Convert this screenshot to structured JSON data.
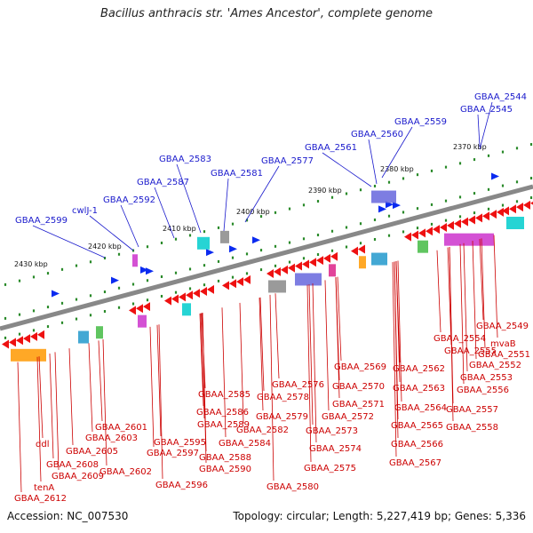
{
  "title": "Bacillus anthracis str. 'Ames Ancestor', complete genome",
  "footer": {
    "accession": "Accession: NC_007530",
    "topology": "Topology: circular; Length: 5,227,419 bp; Genes: 5,336"
  },
  "colors": {
    "backbone": "#888888",
    "forward_gene": "#0b2bf0",
    "reverse_gene": "#ee1111",
    "label_upper": "#1a1acc",
    "label_lower": "#cc0000",
    "tick_green": "#2a8a2a"
  },
  "kbp_labels": [
    "2370 kbp",
    "2380 kbp",
    "2390 kbp",
    "2400 kbp",
    "2410 kbp",
    "2420 kbp",
    "2430 kbp"
  ],
  "upper_labels": [
    "GBAA_2544",
    "GBAA_2545",
    "GBAA_2559",
    "GBAA_2560",
    "GBAA_2561",
    "GBAA_2577",
    "GBAA_2581",
    "GBAA_2583",
    "GBAA_2587",
    "GBAA_2592",
    "cwlJ-1",
    "GBAA_2599"
  ],
  "lower_labels": [
    "GBAA_2549",
    "mvaB",
    "GBAA_2551",
    "GBAA_2552",
    "GBAA_2553",
    "GBAA_2554",
    "GBAA_2555",
    "GBAA_2556",
    "GBAA_2557",
    "GBAA_2558",
    "GBAA_2562",
    "GBAA_2563",
    "GBAA_2564",
    "GBAA_2565",
    "GBAA_2566",
    "GBAA_2567",
    "GBAA_2569",
    "GBAA_2570",
    "GBAA_2571",
    "GBAA_2572",
    "GBAA_2573",
    "GBAA_2574",
    "GBAA_2575",
    "GBAA_2576",
    "GBAA_2578",
    "GBAA_2579",
    "GBAA_2580",
    "GBAA_2582",
    "GBAA_2584",
    "GBAA_2585",
    "GBAA_2586",
    "GBAA_2588",
    "GBAA_2589",
    "GBAA_2590",
    "GBAA_2595",
    "GBAA_2596",
    "GBAA_2597",
    "GBAA_2601",
    "GBAA_2602",
    "GBAA_2603",
    "GBAA_2605",
    "GBAA_2608",
    "GBAA_2609",
    "GBAA_2612",
    "ddl",
    "tenA"
  ]
}
